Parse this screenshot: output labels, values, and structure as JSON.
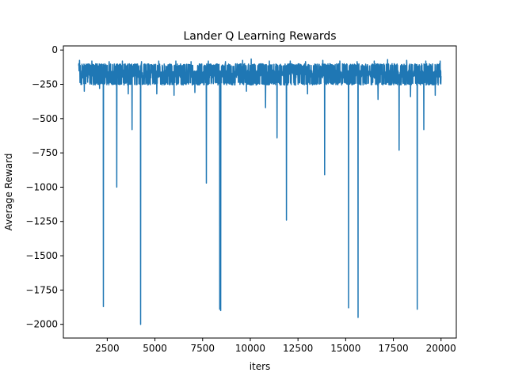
{
  "chart_data": {
    "type": "line",
    "title": "Lander Q Learning Rewards",
    "xlabel": "iters",
    "ylabel": "Average Reward",
    "xlim": [
      200,
      20800
    ],
    "ylim": [
      -2100,
      30
    ],
    "xticks": [
      2500,
      5000,
      7500,
      10000,
      12500,
      15000,
      17500,
      20000
    ],
    "yticks": [
      0,
      -250,
      -500,
      -750,
      -1000,
      -1250,
      -1500,
      -1750,
      -2000
    ],
    "grid": false,
    "legend": "none",
    "color": "#1f77b4",
    "series": [
      {
        "x_start": 1000,
        "x_end": 20000,
        "band_low": -245,
        "band_high": -110,
        "band_center": -175,
        "upper_spikes": [
          [
            1050,
            -75
          ],
          [
            1700,
            -80
          ],
          [
            2600,
            -85
          ],
          [
            3300,
            -80
          ],
          [
            4300,
            -85
          ],
          [
            5200,
            -80
          ],
          [
            6100,
            -80
          ],
          [
            6900,
            -85
          ],
          [
            7800,
            -80
          ],
          [
            8700,
            -85
          ],
          [
            9600,
            -75
          ],
          [
            10050,
            -65
          ],
          [
            11000,
            -80
          ],
          [
            12100,
            -80
          ],
          [
            12900,
            -85
          ],
          [
            13800,
            -75
          ],
          [
            14700,
            -80
          ],
          [
            15600,
            -85
          ],
          [
            16500,
            -80
          ],
          [
            17200,
            -70
          ],
          [
            18200,
            -75
          ],
          [
            19200,
            -80
          ],
          [
            19950,
            -80
          ]
        ],
        "lower_spikes": [
          [
            1300,
            -300
          ],
          [
            2100,
            -280
          ],
          [
            2300,
            -1870
          ],
          [
            3000,
            -1000
          ],
          [
            3600,
            -320
          ],
          [
            3800,
            -580
          ],
          [
            4250,
            -2000
          ],
          [
            5100,
            -320
          ],
          [
            6000,
            -330
          ],
          [
            7100,
            -310
          ],
          [
            7700,
            -970
          ],
          [
            8400,
            -1890
          ],
          [
            8450,
            -1900
          ],
          [
            9800,
            -300
          ],
          [
            10800,
            -420
          ],
          [
            11400,
            -640
          ],
          [
            11900,
            -1240
          ],
          [
            13000,
            -320
          ],
          [
            13900,
            -910
          ],
          [
            15150,
            -1880
          ],
          [
            15650,
            -1950
          ],
          [
            16700,
            -360
          ],
          [
            17800,
            -730
          ],
          [
            18400,
            -340
          ],
          [
            18750,
            -1890
          ],
          [
            19100,
            -580
          ],
          [
            19700,
            -330
          ]
        ]
      }
    ]
  }
}
